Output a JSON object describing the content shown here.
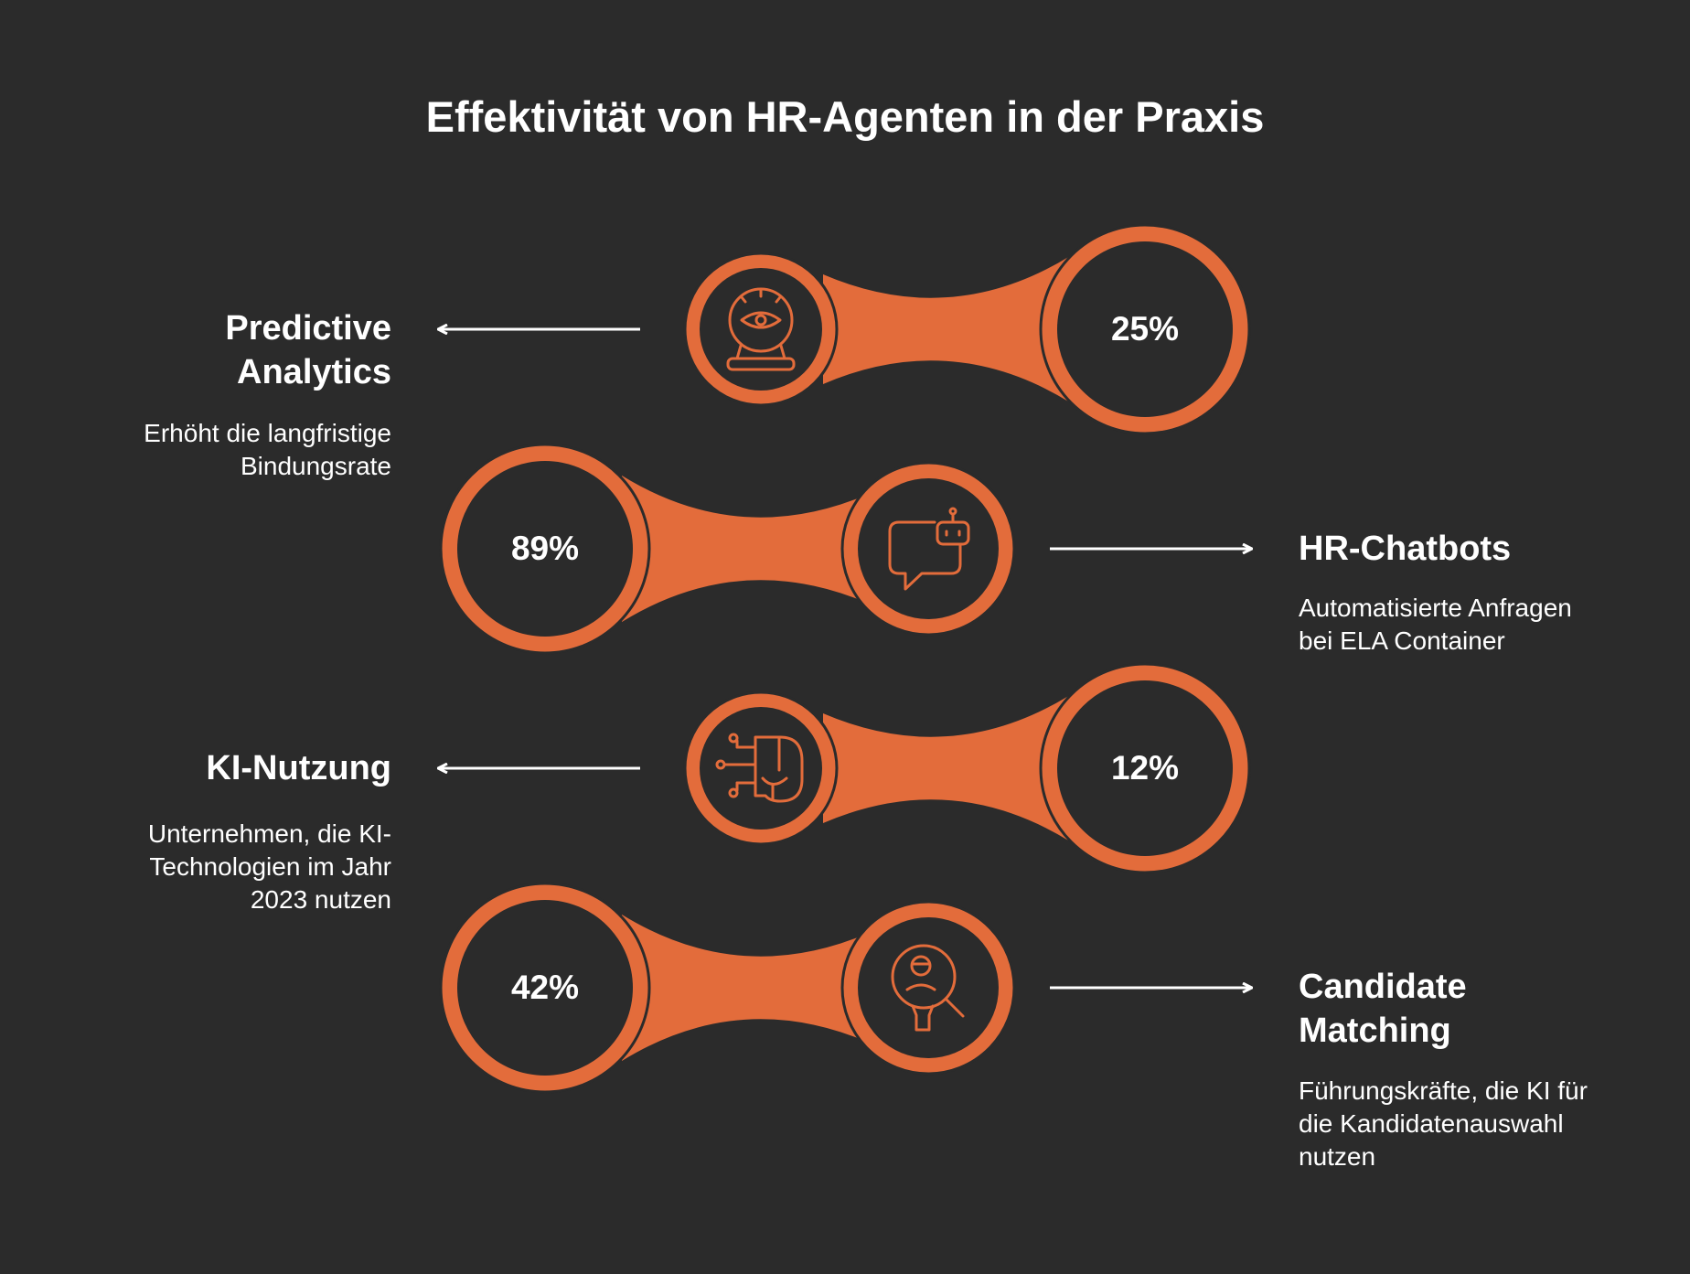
{
  "title": "Effektivität von HR-Agenten in der Praxis",
  "colors": {
    "background": "#2b2b2b",
    "accent": "#e36c3b",
    "text": "#ffffff"
  },
  "items": [
    {
      "value": "25%",
      "heading": "Predictive Analytics",
      "description": "Erhöht die langfristige Bindungsrate",
      "icon": "crystal-ball-eye-icon"
    },
    {
      "value": "89%",
      "heading": "HR-Chatbots",
      "description": "Automatisierte Anfragen bei ELA Container",
      "icon": "chatbot-icon"
    },
    {
      "value": "12%",
      "heading": "KI-Nutzung",
      "description": "Unternehmen, die KI-Technologien im Jahr 2023 nutzen",
      "icon": "ai-brain-icon"
    },
    {
      "value": "42%",
      "heading": "Candidate Matching",
      "description": "Führungskräfte, die KI für die Kandidatenauswahl nutzen",
      "icon": "candidate-search-icon"
    }
  ]
}
